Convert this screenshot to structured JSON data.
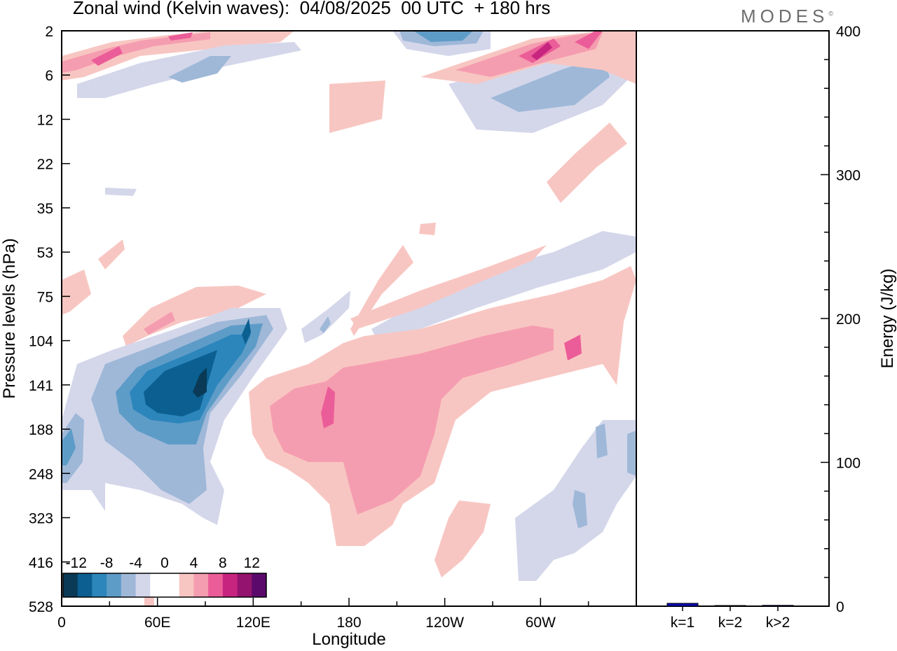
{
  "header": {
    "title": "Zonal wind (Kelvin waves):  04/08/2025  00 UTC  + 180 hrs",
    "brand": "MODES",
    "brand_mark": "©"
  },
  "chart_data": [
    {
      "type": "heatmap",
      "title": "Zonal wind (Kelvin waves):  04/08/2025  00 UTC  + 180 hrs",
      "xlabel": "Longitude",
      "ylabel": "Pressure levels (hPa)",
      "x_ticks": [
        "0",
        "60E",
        "120E",
        "180",
        "120W",
        "60W"
      ],
      "x_range_deg": [
        0,
        360
      ],
      "y_ticks": [
        "2",
        "6",
        "12",
        "22",
        "35",
        "53",
        "75",
        "104",
        "141",
        "188",
        "248",
        "323",
        "416",
        "528"
      ],
      "colorbar": {
        "labels": [
          "-12",
          "-8",
          "-4",
          "0",
          "4",
          "8",
          "12"
        ],
        "colors": [
          "#0a3a55",
          "#0b5f91",
          "#2c86bb",
          "#5e9cc8",
          "#9fb8d8",
          "#d4d7ea",
          "#ffffff",
          "#ffffff",
          "#f8c6c2",
          "#f59db0",
          "#eb5d98",
          "#c7247f",
          "#94136e",
          "#5b0a6c"
        ]
      },
      "features": [
        {
          "name": "strong easterly core near 141 hPa",
          "lon_center": 80,
          "level": "141",
          "value": -14
        },
        {
          "name": "westerly anomaly band 180–120W",
          "lon_center": 215,
          "level": "188",
          "value": 6
        },
        {
          "name": "easterly patch 60W region",
          "lon_center": 310,
          "level": "248",
          "value": -4
        },
        {
          "name": "stratospheric westerly streak",
          "lon_center": 300,
          "level": "6",
          "value": 8
        }
      ]
    },
    {
      "type": "bar",
      "categories": [
        "k=1",
        "k=2",
        "k>2"
      ],
      "values": [
        2,
        0.4,
        0.6
      ],
      "ylabel": "Energy (J/kg)",
      "ylim": [
        0,
        400
      ],
      "y_ticks": [
        0,
        100,
        200,
        300,
        400
      ],
      "color": "#0a0ab4"
    }
  ]
}
